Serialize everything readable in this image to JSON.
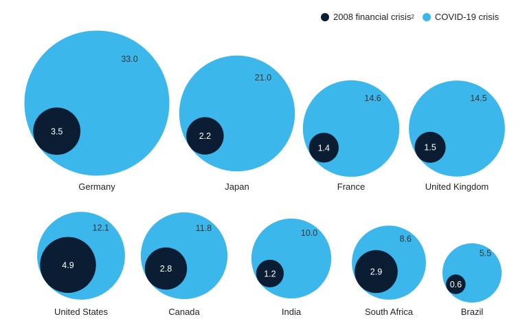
{
  "chart_data": {
    "type": "bubble",
    "series": [
      {
        "name": "2008 financial crisis",
        "footnote": "2",
        "color": "#0a1d33"
      },
      {
        "name": "COVID-19 crisis",
        "color": "#3bb7ec"
      }
    ],
    "countries": [
      {
        "label": "Germany",
        "covid": "33.0",
        "crisis2008": "3.5"
      },
      {
        "label": "Japan",
        "covid": "21.0",
        "crisis2008": "2.2"
      },
      {
        "label": "France",
        "covid": "14.6",
        "crisis2008": "1.4"
      },
      {
        "label": "United Kingdom",
        "covid": "14.5",
        "crisis2008": "1.5"
      },
      {
        "label": "United States",
        "covid": "12.1",
        "crisis2008": "4.9"
      },
      {
        "label": "Canada",
        "covid": "11.8",
        "crisis2008": "2.8"
      },
      {
        "label": "India",
        "covid": "10.0",
        "crisis2008": "1.2"
      },
      {
        "label": "South Africa",
        "covid": "8.6",
        "crisis2008": "2.9"
      },
      {
        "label": "Brazil",
        "covid": "5.5",
        "crisis2008": "0.6"
      }
    ],
    "legend_position": "top-right"
  }
}
